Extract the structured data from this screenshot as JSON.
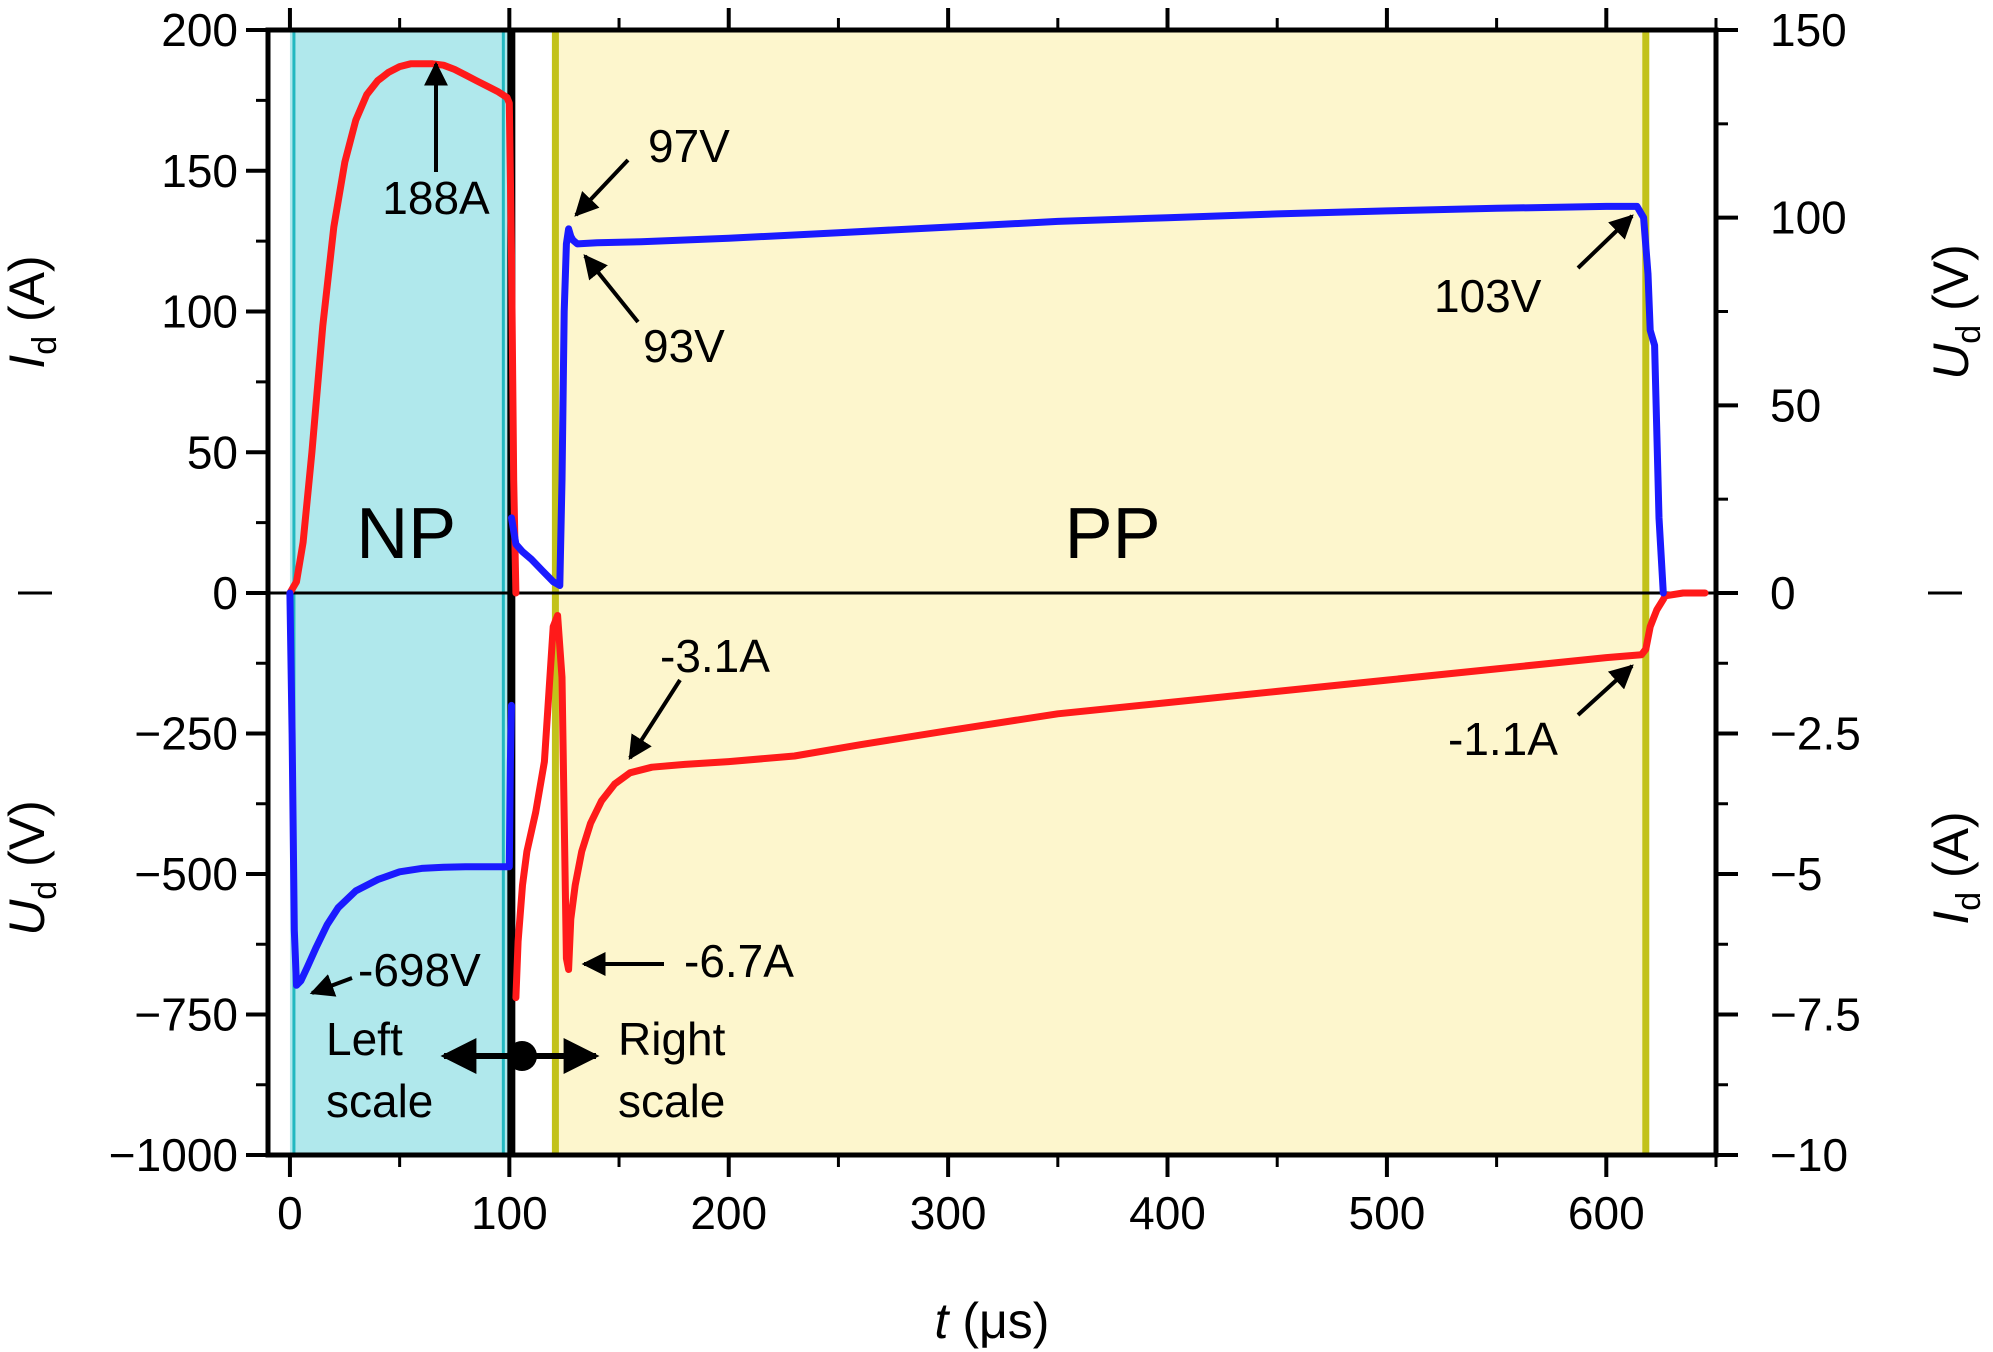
{
  "chart_data": {
    "type": "line",
    "title": "",
    "xlabel": {
      "symbol": "t",
      "unit": "(μs)"
    },
    "x_ticks": [
      "0",
      "100",
      "200",
      "300",
      "400",
      "500",
      "600"
    ],
    "xlim": [
      -10,
      650
    ],
    "left_axis": {
      "upper": {
        "symbol": "I",
        "subscript": "d",
        "unit": "(A)",
        "range": [
          0,
          200
        ],
        "ticks": [
          "0",
          "50",
          "100",
          "150",
          "200"
        ]
      },
      "lower": {
        "symbol": "U",
        "subscript": "d",
        "unit": "(V)",
        "range": [
          -1000,
          0
        ],
        "ticks": [
          "−250",
          "−500",
          "−750",
          "−1000"
        ]
      }
    },
    "right_axis": {
      "upper": {
        "symbol": "U",
        "subscript": "d",
        "unit": "(V)",
        "range": [
          0,
          150
        ],
        "ticks": [
          "0",
          "50",
          "100",
          "150"
        ]
      },
      "lower": {
        "symbol": "I",
        "subscript": "d",
        "unit": "(A)",
        "range": [
          -10,
          0
        ],
        "ticks": [
          "−2.5",
          "−5",
          "−7.5",
          "−10"
        ]
      }
    },
    "regions": [
      {
        "name": "NP",
        "x_start": 0,
        "x_end": 100,
        "color": "#b0e8ec"
      },
      {
        "name": "PP",
        "x_start": 121,
        "x_end": 618,
        "color": "#fdf6cd"
      }
    ],
    "scale_note": {
      "left": "Left\nscale",
      "right": "Right\nscale"
    },
    "series": [
      {
        "name": "Current Id (NP, left scale)",
        "color": "#ff1a1a",
        "scale": "left-upper",
        "points": [
          [
            0,
            0
          ],
          [
            3,
            4
          ],
          [
            6,
            18
          ],
          [
            10,
            50
          ],
          [
            15,
            95
          ],
          [
            20,
            130
          ],
          [
            25,
            153
          ],
          [
            30,
            168
          ],
          [
            35,
            177
          ],
          [
            40,
            182
          ],
          [
            45,
            185
          ],
          [
            50,
            187
          ],
          [
            55,
            188
          ],
          [
            60,
            188
          ],
          [
            65,
            188
          ],
          [
            70,
            187.5
          ],
          [
            75,
            186
          ],
          [
            80,
            184
          ],
          [
            85,
            182
          ],
          [
            90,
            180
          ],
          [
            95,
            178
          ],
          [
            99,
            176
          ],
          [
            100,
            174
          ],
          [
            101,
            120
          ],
          [
            102,
            40
          ],
          [
            103,
            0
          ]
        ]
      },
      {
        "name": "Current Id (PP, right scale)",
        "color": "#ff1a1a",
        "scale": "right-lower",
        "points": [
          [
            103,
            -7.2
          ],
          [
            104,
            -6.2
          ],
          [
            106,
            -5.2
          ],
          [
            108,
            -4.6
          ],
          [
            112,
            -3.9
          ],
          [
            116,
            -3.0
          ],
          [
            120,
            -0.6
          ],
          [
            122,
            -0.4
          ],
          [
            124,
            -1.5
          ],
          [
            125,
            -4.0
          ],
          [
            126,
            -6.5
          ],
          [
            127,
            -6.7
          ],
          [
            128,
            -5.8
          ],
          [
            130,
            -5.2
          ],
          [
            133,
            -4.6
          ],
          [
            137,
            -4.1
          ],
          [
            142,
            -3.7
          ],
          [
            148,
            -3.4
          ],
          [
            155,
            -3.2
          ],
          [
            165,
            -3.1
          ],
          [
            180,
            -3.05
          ],
          [
            200,
            -3.0
          ],
          [
            230,
            -2.9
          ],
          [
            260,
            -2.7
          ],
          [
            300,
            -2.45
          ],
          [
            350,
            -2.15
          ],
          [
            400,
            -1.95
          ],
          [
            450,
            -1.75
          ],
          [
            500,
            -1.55
          ],
          [
            550,
            -1.35
          ],
          [
            600,
            -1.15
          ],
          [
            616,
            -1.1
          ],
          [
            618,
            -1.0
          ],
          [
            620,
            -0.6
          ],
          [
            623,
            -0.3
          ],
          [
            627,
            -0.05
          ],
          [
            635,
            0
          ],
          [
            645,
            0
          ]
        ]
      },
      {
        "name": "Voltage Ud (NP, left scale)",
        "color": "#1a1aff",
        "scale": "left-lower",
        "points": [
          [
            0,
            0
          ],
          [
            1,
            -250
          ],
          [
            2,
            -600
          ],
          [
            3,
            -698
          ],
          [
            5,
            -690
          ],
          [
            8,
            -665
          ],
          [
            12,
            -630
          ],
          [
            17,
            -590
          ],
          [
            22,
            -560
          ],
          [
            30,
            -530
          ],
          [
            40,
            -510
          ],
          [
            50,
            -496
          ],
          [
            60,
            -490
          ],
          [
            70,
            -488
          ],
          [
            80,
            -487
          ],
          [
            90,
            -487
          ],
          [
            100,
            -487
          ],
          [
            100.5,
            -300
          ],
          [
            101,
            -200
          ]
        ]
      },
      {
        "name": "Voltage Ud (PP, right scale)",
        "color": "#1a1aff",
        "scale": "right-upper",
        "points": [
          [
            101,
            20
          ],
          [
            103,
            13
          ],
          [
            106,
            11
          ],
          [
            110,
            9
          ],
          [
            115,
            6
          ],
          [
            120,
            3
          ],
          [
            123,
            2
          ],
          [
            124,
            30
          ],
          [
            125,
            75
          ],
          [
            126,
            93
          ],
          [
            127,
            97
          ],
          [
            128,
            95
          ],
          [
            129,
            94
          ],
          [
            131,
            93
          ],
          [
            140,
            93.3
          ],
          [
            160,
            93.6
          ],
          [
            200,
            94.5
          ],
          [
            250,
            96
          ],
          [
            300,
            97.5
          ],
          [
            350,
            99
          ],
          [
            400,
            100
          ],
          [
            450,
            101
          ],
          [
            500,
            101.8
          ],
          [
            550,
            102.5
          ],
          [
            600,
            103
          ],
          [
            614,
            103
          ],
          [
            617,
            100
          ],
          [
            619,
            85
          ],
          [
            620,
            70
          ],
          [
            622,
            66
          ],
          [
            624,
            20
          ],
          [
            626,
            0
          ]
        ]
      }
    ],
    "annotations": [
      {
        "text": "188A"
      },
      {
        "text": "97V"
      },
      {
        "text": "93V"
      },
      {
        "text": "103V"
      },
      {
        "text": "-3.1A"
      },
      {
        "text": "-1.1A"
      },
      {
        "text": "-6.7A"
      },
      {
        "text": "-698V"
      }
    ]
  }
}
